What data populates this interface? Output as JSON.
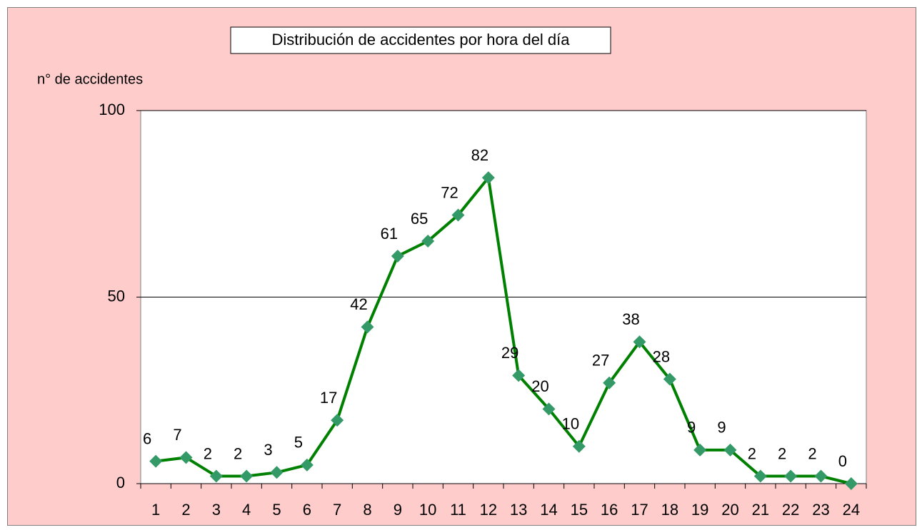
{
  "chart_data": {
    "type": "line",
    "title": "Distribución de accidentes por hora del día",
    "y_label": "n° de accidentes",
    "categories": [
      "1",
      "2",
      "3",
      "4",
      "5",
      "6",
      "7",
      "8",
      "9",
      "10",
      "11",
      "12",
      "13",
      "14",
      "15",
      "16",
      "17",
      "18",
      "19",
      "20",
      "21",
      "22",
      "23",
      "24"
    ],
    "series": [
      {
        "name": "accidentes",
        "color": "#008000",
        "marker_color": "#339966",
        "values": [
          6,
          7,
          2,
          2,
          3,
          5,
          17,
          42,
          61,
          65,
          72,
          82,
          29,
          20,
          10,
          27,
          38,
          28,
          9,
          9,
          2,
          2,
          2,
          0
        ]
      }
    ],
    "ylim": [
      0,
      100
    ],
    "yticks": [
      0,
      50,
      100
    ],
    "grid": true,
    "background": "#ffcccc"
  }
}
